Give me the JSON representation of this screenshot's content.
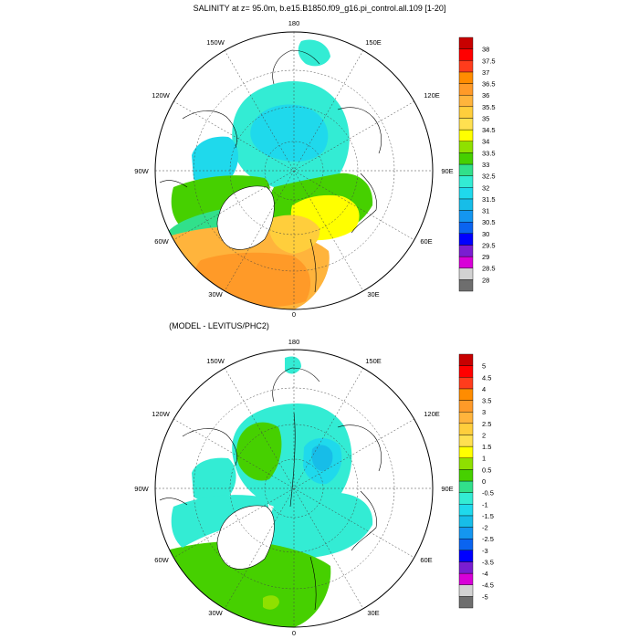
{
  "colors": {
    "top": [
      "#6e6e6e",
      "#d2d2d2",
      "#d800d8",
      "#7a1dd1",
      "#0000ff",
      "#0a64f0",
      "#1496f0",
      "#17bde8",
      "#1fd9ec",
      "#33ecd4",
      "#31e08b",
      "#46d000",
      "#8fe000",
      "#ffff00",
      "#ffe050",
      "#ffce3c",
      "#ffb43c",
      "#ff9a28",
      "#ff8c00",
      "#ff3c1c",
      "#ff0000",
      "#c80000"
    ],
    "diff": [
      "#6e6e6e",
      "#d2d2d2",
      "#d800d8",
      "#7a1dd1",
      "#0000ff",
      "#0a64f0",
      "#1496f0",
      "#17bde8",
      "#1fd9ec",
      "#33ecd4",
      "#31e08b",
      "#46d000",
      "#8fe000",
      "#ffff00",
      "#ffe050",
      "#ffce3c",
      "#ffb43c",
      "#ff9a28",
      "#ff8c00",
      "#ff3c1c",
      "#ff0000",
      "#c80000"
    ],
    "land": "#ffffff",
    "coast": "#000000",
    "grid": "#444444"
  },
  "chart_data": [
    {
      "type": "heatmap",
      "projection": "north-polar-stereographic",
      "title": "SALINITY at z=  95.0m, b.e15.B1850.f09_g16.pi_control.all.109 [1-20]",
      "lon_labels": [
        "180",
        "150E",
        "120E",
        "90E",
        "60E",
        "30E",
        "0",
        "30W",
        "60W",
        "90W",
        "120W",
        "150W"
      ],
      "colorbar_labels": [
        "38",
        "37.5",
        "37",
        "36.5",
        "36",
        "35.5",
        "35",
        "34.5",
        "34",
        "33.5",
        "33",
        "32.5",
        "32",
        "31.5",
        "31",
        "30.5",
        "30",
        "29.5",
        "29",
        "28.5",
        "28"
      ],
      "colorbar_min": 28,
      "colorbar_max": 38
    },
    {
      "type": "heatmap",
      "projection": "north-polar-stereographic",
      "title": "(MODEL - LEVITUS/PHC2)",
      "lon_labels": [
        "180",
        "150E",
        "120E",
        "90E",
        "60E",
        "30E",
        "0",
        "30W",
        "60W",
        "90W",
        "120W",
        "150W"
      ],
      "colorbar_labels": [
        "5",
        "4.5",
        "4",
        "3.5",
        "3",
        "2.5",
        "2",
        "1.5",
        "1",
        "0.5",
        "0",
        "-0.5",
        "-1",
        "-1.5",
        "-2",
        "-2.5",
        "-3",
        "-3.5",
        "-4",
        "-4.5",
        "-5"
      ],
      "colorbar_min": -5,
      "colorbar_max": 5
    }
  ]
}
